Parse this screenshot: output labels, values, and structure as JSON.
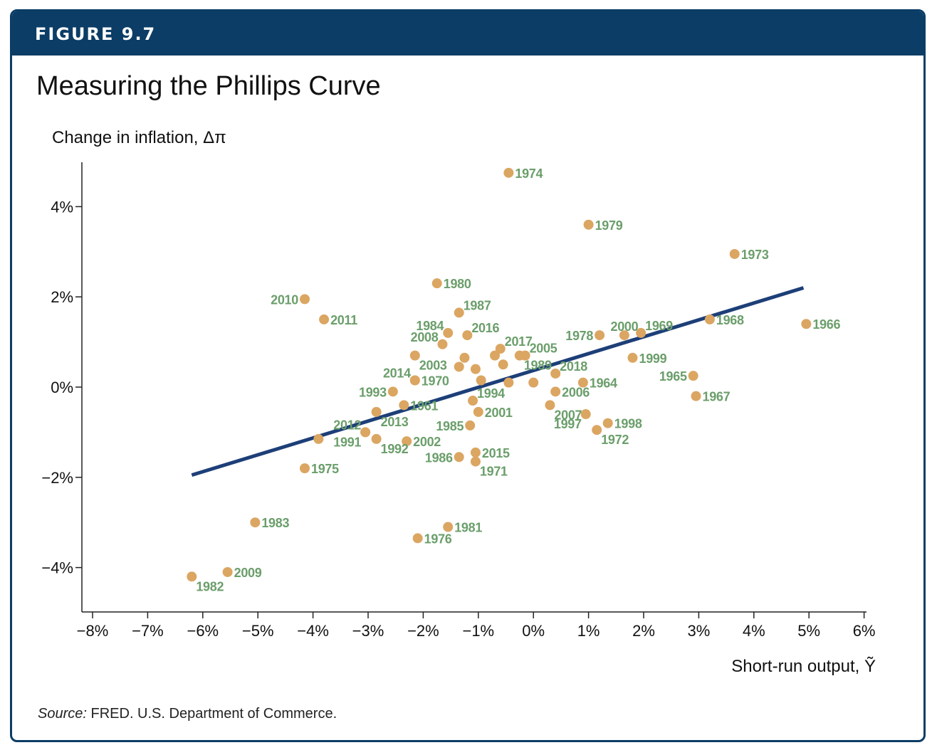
{
  "figure": {
    "label": "FIGURE 9.7",
    "title": "Measuring the Phillips Curve",
    "source_prefix": "Source:",
    "source_text": " FRED. U.S. Department of Commerce.",
    "colors": {
      "banner": "#0b3d66",
      "point": "#dba662",
      "label": "#6b9e6b",
      "fit_line": "#1d3f78"
    }
  },
  "chart_data": {
    "type": "scatter",
    "title": "Measuring the Phillips Curve",
    "ylabel": "Change in inflation, Δπ",
    "xlabel": "Short-run output, Ỹ",
    "xlim": [
      -8,
      6
    ],
    "ylim": [
      -5,
      5
    ],
    "x_ticks": [
      -8,
      -7,
      -6,
      -5,
      -4,
      -3,
      -2,
      -1,
      0,
      1,
      2,
      3,
      4,
      5,
      6
    ],
    "x_tick_labels": [
      "−8%",
      "−7%",
      "−6%",
      "−5%",
      "−4%",
      "−3%",
      "−2%",
      "−1%",
      "0%",
      "1%",
      "2%",
      "3%",
      "4%",
      "5%",
      "6%"
    ],
    "y_ticks": [
      4,
      2,
      0,
      -2,
      -4
    ],
    "y_tick_labels": [
      "4%",
      "2%",
      "0%",
      "−2%",
      "−4%"
    ],
    "grid": false,
    "fit_line": {
      "x": [
        -6.2,
        4.9
      ],
      "y": [
        -1.95,
        2.2
      ]
    },
    "points": [
      {
        "year": "1974",
        "x": -0.45,
        "y": 4.75,
        "pos": "r"
      },
      {
        "year": "1979",
        "x": 1.0,
        "y": 3.6,
        "pos": "r"
      },
      {
        "year": "1973",
        "x": 3.65,
        "y": 2.95,
        "pos": "r"
      },
      {
        "year": "1980",
        "x": -1.75,
        "y": 2.3,
        "pos": "r"
      },
      {
        "year": "2010",
        "x": -4.15,
        "y": 1.95,
        "pos": "l"
      },
      {
        "year": "1987",
        "x": -1.35,
        "y": 1.65,
        "pos": "ru"
      },
      {
        "year": "2011",
        "x": -3.8,
        "y": 1.5,
        "pos": "r"
      },
      {
        "year": "1968",
        "x": 3.2,
        "y": 1.5,
        "pos": "r"
      },
      {
        "year": "1966",
        "x": 4.95,
        "y": 1.4,
        "pos": "r"
      },
      {
        "year": "1984",
        "x": -1.55,
        "y": 1.2,
        "pos": "lu"
      },
      {
        "year": "2016",
        "x": -1.2,
        "y": 1.15,
        "pos": "ru"
      },
      {
        "year": "1978",
        "x": 1.2,
        "y": 1.15,
        "pos": "l"
      },
      {
        "year": "2000",
        "x": 1.65,
        "y": 1.15,
        "pos": "u"
      },
      {
        "year": "1969",
        "x": 1.95,
        "y": 1.2,
        "pos": "ru"
      },
      {
        "year": "2008",
        "x": -1.65,
        "y": 0.95,
        "pos": "lu"
      },
      {
        "year": "2017",
        "x": -0.6,
        "y": 0.85,
        "pos": "ru"
      },
      {
        "year": "2005",
        "x": -0.15,
        "y": 0.7,
        "pos": "ru"
      },
      {
        "year": "2003",
        "x": -2.15,
        "y": 0.7,
        "pos": "rd"
      },
      {
        "year": "1989",
        "x": -0.25,
        "y": 0.7,
        "pos": "rd"
      },
      {
        "year": "",
        "x": -1.25,
        "y": 0.65,
        "pos": "r"
      },
      {
        "year": "",
        "x": -0.7,
        "y": 0.7,
        "pos": "r"
      },
      {
        "year": "",
        "x": -0.55,
        "y": 0.5,
        "pos": "r"
      },
      {
        "year": "1999",
        "x": 1.8,
        "y": 0.65,
        "pos": "r"
      },
      {
        "year": "",
        "x": -1.35,
        "y": 0.45,
        "pos": "r"
      },
      {
        "year": "",
        "x": -1.05,
        "y": 0.4,
        "pos": "r"
      },
      {
        "year": "2018",
        "x": 0.4,
        "y": 0.3,
        "pos": "ru"
      },
      {
        "year": "1965",
        "x": 2.9,
        "y": 0.25,
        "pos": "l"
      },
      {
        "year": "2014",
        "x": -2.15,
        "y": 0.15,
        "pos": "lu"
      },
      {
        "year": "1970",
        "x": -2.15,
        "y": 0.15,
        "pos": "r"
      },
      {
        "year": "",
        "x": -0.95,
        "y": 0.15,
        "pos": "r"
      },
      {
        "year": "1964",
        "x": 0.9,
        "y": 0.1,
        "pos": "r"
      },
      {
        "year": "",
        "x": -0.45,
        "y": 0.1,
        "pos": "r"
      },
      {
        "year": "",
        "x": 0.0,
        "y": 0.1,
        "pos": "r"
      },
      {
        "year": "1993",
        "x": -2.55,
        "y": -0.1,
        "pos": "l"
      },
      {
        "year": "2006",
        "x": 0.4,
        "y": -0.1,
        "pos": "r"
      },
      {
        "year": "1967",
        "x": 2.95,
        "y": -0.2,
        "pos": "r"
      },
      {
        "year": "1994",
        "x": -1.1,
        "y": -0.3,
        "pos": "ru"
      },
      {
        "year": "1961",
        "x": -2.35,
        "y": -0.4,
        "pos": "r"
      },
      {
        "year": "2007",
        "x": 0.3,
        "y": -0.4,
        "pos": "rd"
      },
      {
        "year": "2013",
        "x": -2.85,
        "y": -0.55,
        "pos": "rd"
      },
      {
        "year": "2001",
        "x": -1.0,
        "y": -0.55,
        "pos": "r"
      },
      {
        "year": "1997",
        "x": 0.95,
        "y": -0.6,
        "pos": "ld"
      },
      {
        "year": "1998",
        "x": 1.35,
        "y": -0.8,
        "pos": "r"
      },
      {
        "year": "1985",
        "x": -1.15,
        "y": -0.85,
        "pos": "l"
      },
      {
        "year": "1972",
        "x": 1.15,
        "y": -0.95,
        "pos": "rd"
      },
      {
        "year": "2012",
        "x": -3.05,
        "y": -1.0,
        "pos": "lu"
      },
      {
        "year": "1991",
        "x": -3.05,
        "y": -1.0,
        "pos": "ld"
      },
      {
        "year": "",
        "x": -3.9,
        "y": -1.15,
        "pos": "r"
      },
      {
        "year": "1992",
        "x": -2.85,
        "y": -1.15,
        "pos": "rd"
      },
      {
        "year": "2002",
        "x": -2.3,
        "y": -1.2,
        "pos": "r"
      },
      {
        "year": "2015",
        "x": -1.05,
        "y": -1.45,
        "pos": "r"
      },
      {
        "year": "1986",
        "x": -1.35,
        "y": -1.55,
        "pos": "l"
      },
      {
        "year": "1971",
        "x": -1.05,
        "y": -1.65,
        "pos": "rd"
      },
      {
        "year": "1975",
        "x": -4.15,
        "y": -1.8,
        "pos": "r"
      },
      {
        "year": "1983",
        "x": -5.05,
        "y": -3.0,
        "pos": "r"
      },
      {
        "year": "1981",
        "x": -1.55,
        "y": -3.1,
        "pos": "r"
      },
      {
        "year": "1976",
        "x": -2.1,
        "y": -3.35,
        "pos": "r"
      },
      {
        "year": "2009",
        "x": -5.55,
        "y": -4.1,
        "pos": "r"
      },
      {
        "year": "1982",
        "x": -6.2,
        "y": -4.2,
        "pos": "rd"
      }
    ]
  }
}
